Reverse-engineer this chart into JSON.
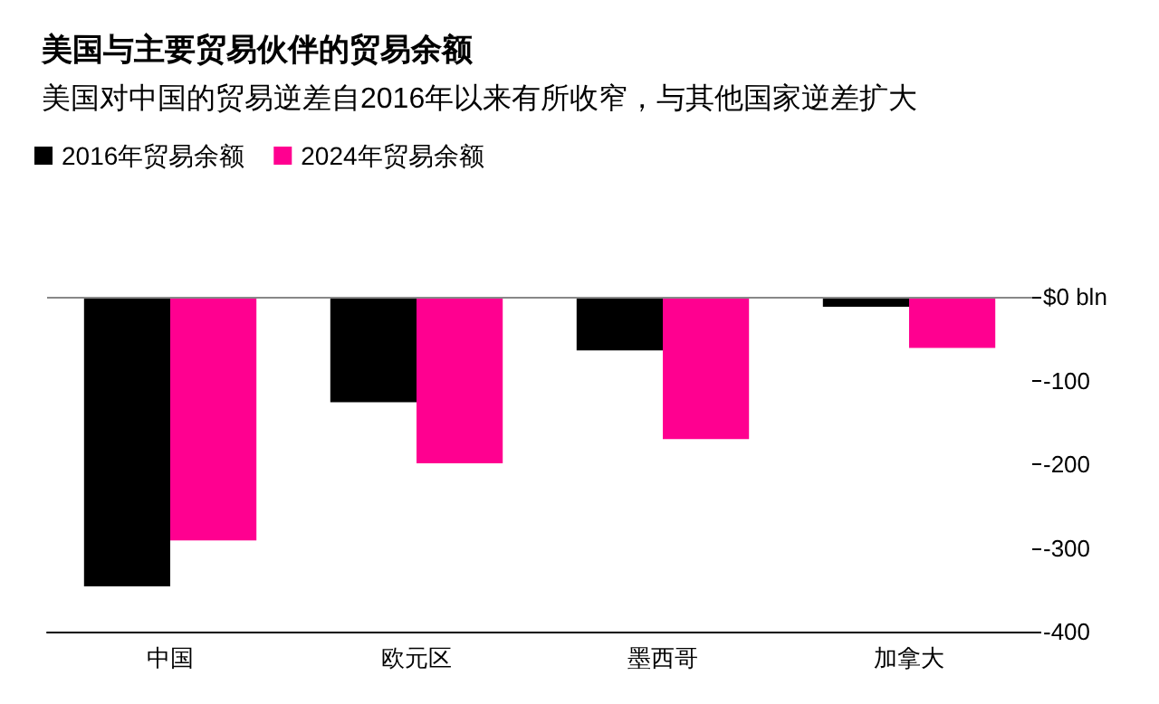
{
  "chart_data": {
    "type": "bar",
    "title": "美国与主要贸易伙伴的贸易余额",
    "subtitle": "美国对中国的贸易逆差自2016年以来有所收窄，与其他国家逆差扩大",
    "categories": [
      "中国",
      "欧元区",
      "墨西哥",
      "加拿大"
    ],
    "series": [
      {
        "name": "2016年贸易余额",
        "color": "#000000",
        "values": [
          -346,
          -126,
          -64,
          -12
        ]
      },
      {
        "name": "2024年贸易余额",
        "color": "#ff0090",
        "values": [
          -291,
          -199,
          -170,
          -61
        ]
      }
    ],
    "ylim": [
      -400,
      0
    ],
    "yticks": [
      {
        "value": 0,
        "label": "$0 bln"
      },
      -100,
      -200,
      -300,
      -400
    ],
    "ref_lines": [
      {
        "axis": "y",
        "value": 0
      }
    ],
    "grid": false,
    "legend": "top left"
  }
}
